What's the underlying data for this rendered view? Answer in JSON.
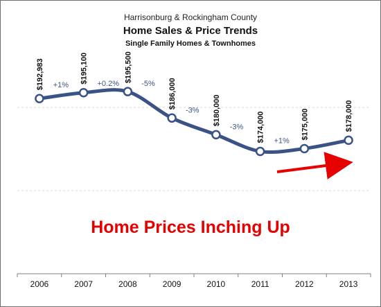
{
  "header": {
    "region": "Harrisonburg & Rockingham County",
    "title": "Home Sales & Price Trends",
    "subtitle": "Single Family Homes & Townhomes"
  },
  "callout": {
    "text": "Home Prices Inching Up",
    "color": "#e60000"
  },
  "colors": {
    "line": "#3a5384",
    "arrow": "#e60000",
    "grid": "#d9d9d9"
  },
  "chart_data": {
    "type": "line",
    "title": "Home Sales & Price Trends",
    "subtitle": "Single Family Homes & Townhomes",
    "categories": [
      "2006",
      "2007",
      "2008",
      "2009",
      "2010",
      "2011",
      "2012",
      "2013"
    ],
    "values": [
      192983,
      195100,
      195500,
      186000,
      180000,
      174000,
      175000,
      178000
    ],
    "value_labels": [
      "$192,983",
      "$195,100",
      "$195,500",
      "$186,000",
      "$180,000",
      "$174,000",
      "$175,000",
      "$178,000"
    ],
    "change_labels": [
      "+1%",
      "+0.2%",
      "-5%",
      "-3%",
      "-3%",
      "+1%"
    ],
    "ylim": [
      130000,
      210000
    ],
    "grid": true,
    "legend": "none"
  }
}
